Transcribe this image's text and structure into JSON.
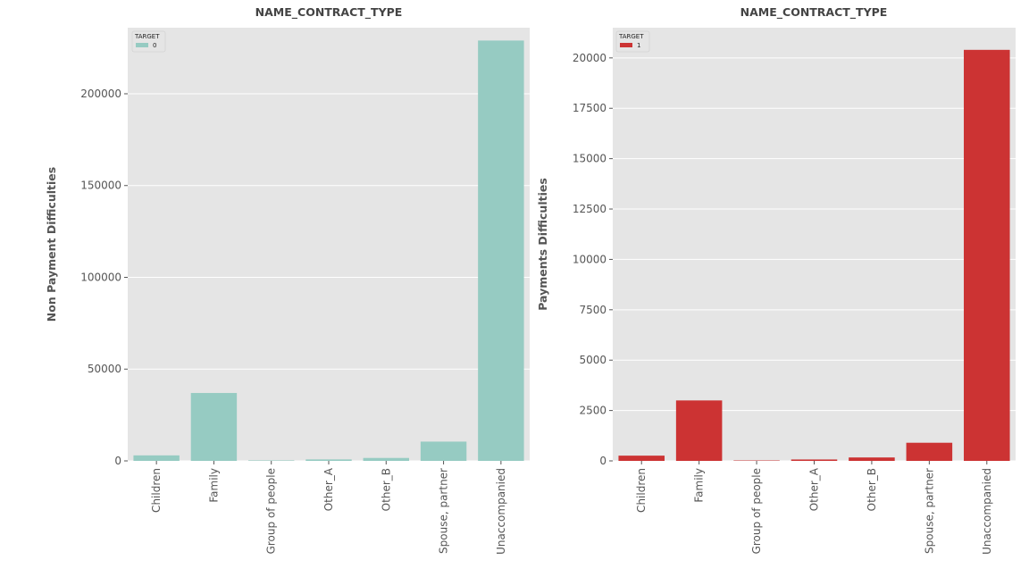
{
  "chart_data": [
    {
      "type": "bar",
      "title": "NAME_CONTRACT_TYPE",
      "xlabel": "",
      "ylabel": "Non Payment Difficulties",
      "categories": [
        "Children",
        "Family",
        "Group of people",
        "Other_A",
        "Other_B",
        "Spouse, partner",
        "Unaccompanied"
      ],
      "series": [
        {
          "name": "0",
          "values": [
            3000,
            37000,
            250,
            800,
            1600,
            10500,
            229000
          ]
        }
      ],
      "yticks": [
        0,
        50000,
        100000,
        150000,
        200000
      ],
      "ylim": [
        0,
        236000
      ],
      "legend": {
        "title": "TARGET",
        "entries": [
          "0"
        ],
        "position": "top-left"
      },
      "color": "#96cbc2",
      "grid": true
    },
    {
      "type": "bar",
      "title": "NAME_CONTRACT_TYPE",
      "xlabel": "",
      "ylabel": "Payments Difficulties",
      "categories": [
        "Children",
        "Family",
        "Group of people",
        "Other_A",
        "Other_B",
        "Spouse, partner",
        "Unaccompanied"
      ],
      "series": [
        {
          "name": "1",
          "values": [
            260,
            3000,
            20,
            70,
            170,
            900,
            20400
          ]
        }
      ],
      "yticks": [
        0,
        2500,
        5000,
        7500,
        10000,
        12500,
        15000,
        17500,
        20000
      ],
      "ylim": [
        0,
        21500
      ],
      "legend": {
        "title": "TARGET",
        "entries": [
          "1"
        ],
        "position": "top-left"
      },
      "color": "#cc3333",
      "grid": true
    }
  ]
}
